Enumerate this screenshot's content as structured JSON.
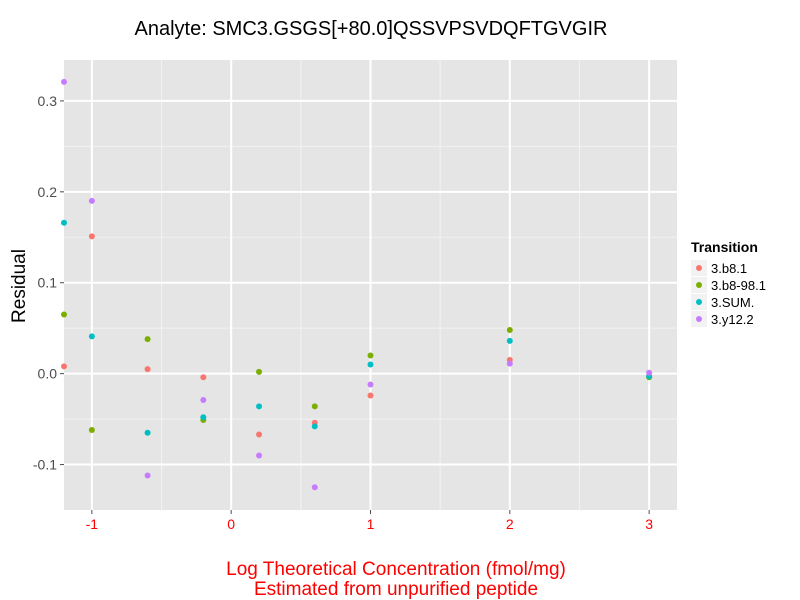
{
  "chart_data": {
    "type": "scatter",
    "title": "Analyte: SMC3.GSGS[+80.0]QSSVPSVDQFTGVGIR",
    "xlabel_lines": [
      "Log Theoretical Concentration (fmol/mg)",
      "Estimated from unpurified peptide"
    ],
    "ylabel": "Residual",
    "xlim": [
      -1.2,
      3.2
    ],
    "ylim": [
      -0.15,
      0.345
    ],
    "xticks": [
      -1,
      0,
      1,
      2,
      3
    ],
    "xtick_labels": [
      "-1",
      "0",
      "1",
      "2",
      "3"
    ],
    "yticks": [
      -0.1,
      0.0,
      0.1,
      0.2,
      0.3
    ],
    "ytick_labels": [
      "-0.1",
      "0.0",
      "0.1",
      "0.2",
      "0.3"
    ],
    "grid": true,
    "legend": {
      "title": "Transition",
      "position": "right"
    },
    "series": [
      {
        "name": "3.b8.1",
        "color": "#F8766D",
        "x": [
          -1.2,
          -1.0,
          -0.6,
          -0.2,
          0.2,
          0.6,
          1.0,
          2.0,
          3.0
        ],
        "y": [
          0.008,
          0.151,
          0.005,
          -0.004,
          -0.067,
          -0.054,
          -0.024,
          0.015,
          -0.003
        ]
      },
      {
        "name": "3.b8-98.1",
        "color": "#7CAE00",
        "x": [
          -1.2,
          -1.0,
          -0.6,
          -0.2,
          0.2,
          0.6,
          1.0,
          2.0,
          3.0
        ],
        "y": [
          0.065,
          -0.062,
          0.038,
          -0.051,
          0.002,
          -0.036,
          0.02,
          0.048,
          -0.004
        ]
      },
      {
        "name": "3.SUM.",
        "color": "#00BFC4",
        "x": [
          -1.2,
          -1.0,
          -0.6,
          -0.2,
          0.2,
          0.6,
          1.0,
          2.0,
          3.0
        ],
        "y": [
          0.166,
          0.041,
          -0.065,
          -0.048,
          -0.036,
          -0.058,
          0.01,
          0.036,
          -0.003
        ]
      },
      {
        "name": "3.y12.2",
        "color": "#C77CFF",
        "x": [
          -1.2,
          -1.0,
          -0.6,
          -0.2,
          0.2,
          0.6,
          1.0,
          2.0,
          3.0
        ],
        "y": [
          0.321,
          0.19,
          -0.112,
          -0.029,
          -0.09,
          -0.125,
          -0.012,
          0.011,
          0.001
        ]
      }
    ]
  },
  "colors": {
    "panel_background": "#E5E5E5",
    "grid_major": "#FFFFFF",
    "grid_minor": "#F2F2F2",
    "x_axis_text": "#FF0000",
    "legend_key_background": "#F2F2F2"
  }
}
